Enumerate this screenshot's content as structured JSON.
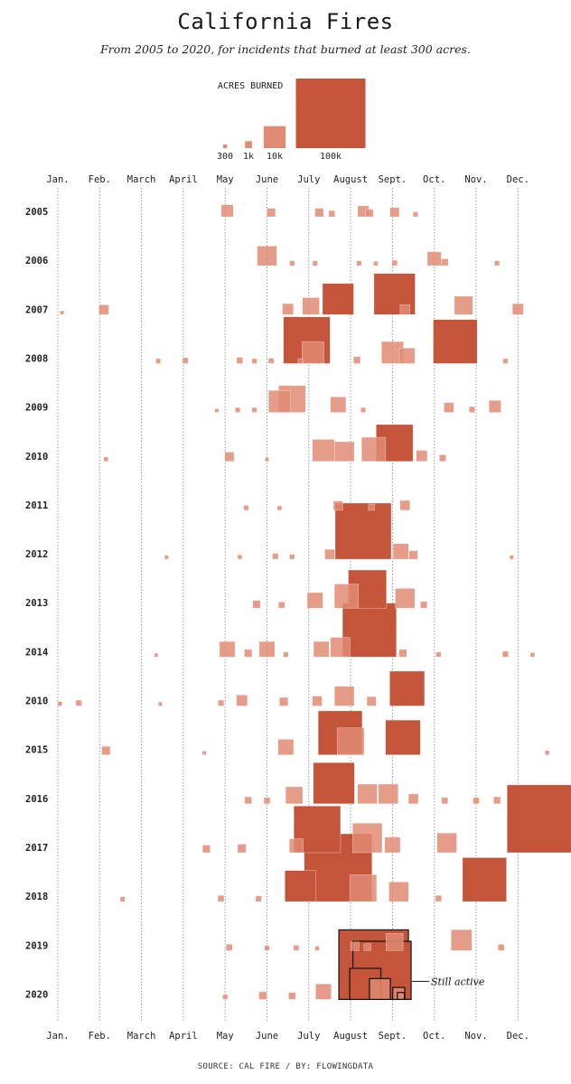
{
  "title": "California Fires",
  "subtitle": "From 2005 to 2020, for incidents that burned at least 300 acres.",
  "source": "SOURCE: CAL FIRE / BY: FLOWINGDATA",
  "colors": {
    "fire": "#c4553a",
    "fire_light": "#e08b74",
    "grid": "#888888",
    "active_outline": "#111111"
  },
  "chart_data": {
    "type": "scatter",
    "marker": "square (area proportional to acres burned)",
    "legend": {
      "title": "ACRES BURNED",
      "entries": [
        {
          "label": "300",
          "acres": 300
        },
        {
          "label": "1k",
          "acres": 1000
        },
        {
          "label": "10k",
          "acres": 10000
        },
        {
          "label": "100k",
          "acres": 100000
        }
      ]
    },
    "months": [
      "Jan.",
      "Feb.",
      "March",
      "April",
      "May",
      "June",
      "July",
      "August",
      "Sept.",
      "Oct.",
      "Nov.",
      "Dec."
    ],
    "rows": [
      "2005",
      "2006",
      "2007",
      "2008",
      "2009",
      "2010",
      "2011",
      "2012",
      "2013",
      "2014",
      "2010",
      "2015",
      "2016",
      "2017",
      "2018",
      "2019",
      "2020"
    ],
    "annotation": {
      "text": "Still active",
      "row": "2020",
      "month": 8.6
    },
    "fires": [
      {
        "row": "2005",
        "month": 5.05,
        "acres": 3000
      },
      {
        "row": "2005",
        "month": 6.1,
        "acres": 1500
      },
      {
        "row": "2005",
        "month": 7.25,
        "acres": 1500
      },
      {
        "row": "2005",
        "month": 7.55,
        "acres": 800
      },
      {
        "row": "2005",
        "month": 8.3,
        "acres": 2500
      },
      {
        "row": "2005",
        "month": 8.45,
        "acres": 1200
      },
      {
        "row": "2005",
        "month": 9.05,
        "acres": 1800
      },
      {
        "row": "2005",
        "month": 9.55,
        "acres": 500
      },
      {
        "row": "2006",
        "month": 6.0,
        "acres": 8000
      },
      {
        "row": "2006",
        "month": 6.6,
        "acres": 500
      },
      {
        "row": "2006",
        "month": 7.15,
        "acres": 500
      },
      {
        "row": "2006",
        "month": 8.2,
        "acres": 500
      },
      {
        "row": "2006",
        "month": 8.6,
        "acres": 400
      },
      {
        "row": "2006",
        "month": 9.05,
        "acres": 600
      },
      {
        "row": "2006",
        "month": 10.0,
        "acres": 4000
      },
      {
        "row": "2006",
        "month": 10.25,
        "acres": 1000
      },
      {
        "row": "2006",
        "month": 11.5,
        "acres": 500
      },
      {
        "row": "2007",
        "month": 1.1,
        "acres": 300
      },
      {
        "row": "2007",
        "month": 2.1,
        "acres": 2000
      },
      {
        "row": "2007",
        "month": 6.5,
        "acres": 2500
      },
      {
        "row": "2007",
        "month": 7.05,
        "acres": 6000
      },
      {
        "row": "2007",
        "month": 7.7,
        "acres": 20000
      },
      {
        "row": "2007",
        "month": 9.05,
        "acres": 35000
      },
      {
        "row": "2007",
        "month": 9.3,
        "acres": 2000
      },
      {
        "row": "2007",
        "month": 10.7,
        "acres": 7000
      },
      {
        "row": "2007",
        "month": 12.0,
        "acres": 2500
      },
      {
        "row": "2008",
        "month": 3.4,
        "acres": 500
      },
      {
        "row": "2008",
        "month": 4.05,
        "acres": 700
      },
      {
        "row": "2008",
        "month": 5.35,
        "acres": 800
      },
      {
        "row": "2008",
        "month": 5.7,
        "acres": 500
      },
      {
        "row": "2008",
        "month": 6.1,
        "acres": 600
      },
      {
        "row": "2008",
        "month": 6.8,
        "acres": 500
      },
      {
        "row": "2008",
        "month": 6.95,
        "acres": 45000
      },
      {
        "row": "2008",
        "month": 7.1,
        "acres": 10000
      },
      {
        "row": "2008",
        "month": 8.15,
        "acres": 1000
      },
      {
        "row": "2008",
        "month": 9.0,
        "acres": 10000
      },
      {
        "row": "2008",
        "month": 9.35,
        "acres": 5000
      },
      {
        "row": "2008",
        "month": 10.5,
        "acres": 40000
      },
      {
        "row": "2008",
        "month": 11.7,
        "acres": 500
      },
      {
        "row": "2009",
        "month": 4.8,
        "acres": 300
      },
      {
        "row": "2009",
        "month": 5.3,
        "acres": 500
      },
      {
        "row": "2009",
        "month": 5.7,
        "acres": 500
      },
      {
        "row": "2009",
        "month": 6.3,
        "acres": 10000
      },
      {
        "row": "2009",
        "month": 6.6,
        "acres": 15000
      },
      {
        "row": "2009",
        "month": 7.7,
        "acres": 5000
      },
      {
        "row": "2009",
        "month": 8.3,
        "acres": 500
      },
      {
        "row": "2009",
        "month": 10.35,
        "acres": 2000
      },
      {
        "row": "2009",
        "month": 10.9,
        "acres": 700
      },
      {
        "row": "2009",
        "month": 11.45,
        "acres": 3000
      },
      {
        "row": "2010",
        "month": 2.15,
        "acres": 400
      },
      {
        "row": "2010",
        "month": 5.1,
        "acres": 1800
      },
      {
        "row": "2010",
        "month": 6.0,
        "acres": 300
      },
      {
        "row": "2010",
        "month": 7.35,
        "acres": 10000
      },
      {
        "row": "2010",
        "month": 7.85,
        "acres": 8000
      },
      {
        "row": "2010",
        "month": 8.55,
        "acres": 12000
      },
      {
        "row": "2010",
        "month": 9.05,
        "acres": 28000
      },
      {
        "row": "2010",
        "month": 9.7,
        "acres": 2500
      },
      {
        "row": "2010",
        "month": 10.2,
        "acres": 900
      },
      {
        "row": "2011",
        "month": 5.5,
        "acres": 500
      },
      {
        "row": "2011",
        "month": 6.3,
        "acres": 400
      },
      {
        "row": "2011",
        "month": 7.7,
        "acres": 1800
      },
      {
        "row": "2011",
        "month": 8.5,
        "acres": 800
      },
      {
        "row": "2011",
        "month": 9.3,
        "acres": 2000
      },
      {
        "row": "2012",
        "month": 3.6,
        "acres": 300
      },
      {
        "row": "2012",
        "month": 5.35,
        "acres": 400
      },
      {
        "row": "2012",
        "month": 6.2,
        "acres": 700
      },
      {
        "row": "2012",
        "month": 6.6,
        "acres": 500
      },
      {
        "row": "2012",
        "month": 7.5,
        "acres": 2000
      },
      {
        "row": "2012",
        "month": 8.3,
        "acres": 65000
      },
      {
        "row": "2012",
        "month": 9.2,
        "acres": 5000
      },
      {
        "row": "2012",
        "month": 9.5,
        "acres": 1500
      },
      {
        "row": "2012",
        "month": 11.85,
        "acres": 300
      },
      {
        "row": "2013",
        "month": 5.75,
        "acres": 1200
      },
      {
        "row": "2013",
        "month": 6.35,
        "acres": 800
      },
      {
        "row": "2013",
        "month": 7.15,
        "acres": 5000
      },
      {
        "row": "2013",
        "month": 7.9,
        "acres": 12000
      },
      {
        "row": "2013",
        "month": 8.4,
        "acres": 30000
      },
      {
        "row": "2013",
        "month": 9.3,
        "acres": 8000
      },
      {
        "row": "2013",
        "month": 9.75,
        "acres": 900
      },
      {
        "row": "2014",
        "month": 3.35,
        "acres": 300
      },
      {
        "row": "2014",
        "month": 5.05,
        "acres": 5000
      },
      {
        "row": "2014",
        "month": 5.55,
        "acres": 1200
      },
      {
        "row": "2014",
        "month": 6.0,
        "acres": 5000
      },
      {
        "row": "2014",
        "month": 6.45,
        "acres": 500
      },
      {
        "row": "2014",
        "month": 7.3,
        "acres": 5000
      },
      {
        "row": "2014",
        "month": 7.75,
        "acres": 8000
      },
      {
        "row": "2014",
        "month": 8.45,
        "acres": 60000
      },
      {
        "row": "2014",
        "month": 9.25,
        "acres": 1200
      },
      {
        "row": "2014",
        "month": 10.1,
        "acres": 500
      },
      {
        "row": "2014",
        "month": 11.7,
        "acres": 700
      },
      {
        "row": "2014",
        "month": 12.35,
        "acres": 400
      },
      {
        "row": "2010b",
        "label": "2010",
        "month": 1.05,
        "acres": 400
      },
      {
        "row": "2010b",
        "label": "2010",
        "month": 1.5,
        "acres": 700
      },
      {
        "row": "2010b",
        "month": 3.45,
        "acres": 300
      },
      {
        "row": "2010b",
        "month": 4.9,
        "acres": 700
      },
      {
        "row": "2010b",
        "month": 5.4,
        "acres": 2500
      },
      {
        "row": "2010b",
        "month": 6.4,
        "acres": 1500
      },
      {
        "row": "2010b",
        "month": 7.2,
        "acres": 2000
      },
      {
        "row": "2010b",
        "month": 7.85,
        "acres": 8000
      },
      {
        "row": "2010b",
        "month": 8.5,
        "acres": 1800
      },
      {
        "row": "2010b",
        "month": 9.35,
        "acres": 25000
      },
      {
        "row": "2015",
        "month": 2.15,
        "acres": 1500
      },
      {
        "row": "2015",
        "month": 4.5,
        "acres": 300
      },
      {
        "row": "2015",
        "month": 6.45,
        "acres": 5000
      },
      {
        "row": "2015",
        "month": 7.75,
        "acres": 40000
      },
      {
        "row": "2015",
        "month": 8.0,
        "acres": 15000
      },
      {
        "row": "2015",
        "month": 9.25,
        "acres": 25000
      },
      {
        "row": "2015",
        "month": 12.7,
        "acres": 400
      },
      {
        "row": "2016",
        "month": 5.55,
        "acres": 1000
      },
      {
        "row": "2016",
        "month": 6.0,
        "acres": 800
      },
      {
        "row": "2016",
        "month": 6.65,
        "acres": 6000
      },
      {
        "row": "2016",
        "month": 7.6,
        "acres": 35000
      },
      {
        "row": "2016",
        "month": 8.4,
        "acres": 8000
      },
      {
        "row": "2016",
        "month": 8.9,
        "acres": 8000
      },
      {
        "row": "2016",
        "month": 9.5,
        "acres": 2000
      },
      {
        "row": "2016",
        "month": 10.25,
        "acres": 800
      },
      {
        "row": "2016",
        "month": 11.0,
        "acres": 800
      },
      {
        "row": "2016",
        "month": 11.5,
        "acres": 1000
      },
      {
        "row": "2017",
        "month": 4.55,
        "acres": 1200
      },
      {
        "row": "2017",
        "month": 5.4,
        "acres": 1500
      },
      {
        "row": "2017",
        "month": 6.7,
        "acres": 4000
      },
      {
        "row": "2017",
        "month": 7.2,
        "acres": 45000
      },
      {
        "row": "2017",
        "month": 8.4,
        "acres": 18000
      },
      {
        "row": "2017",
        "month": 9.0,
        "acres": 5000
      },
      {
        "row": "2017",
        "month": 10.3,
        "acres": 8000
      },
      {
        "row": "2017",
        "month": 12.55,
        "acres": 95000
      },
      {
        "row": "2018",
        "month": 2.55,
        "acres": 500
      },
      {
        "row": "2018",
        "month": 4.9,
        "acres": 800
      },
      {
        "row": "2018",
        "month": 5.8,
        "acres": 700
      },
      {
        "row": "2018",
        "month": 6.8,
        "acres": 20000
      },
      {
        "row": "2018",
        "month": 7.7,
        "acres": 95000
      },
      {
        "row": "2018",
        "month": 8.3,
        "acres": 15000
      },
      {
        "row": "2018",
        "month": 9.15,
        "acres": 8000
      },
      {
        "row": "2018",
        "month": 10.1,
        "acres": 800
      },
      {
        "row": "2018",
        "month": 11.2,
        "acres": 40000
      },
      {
        "row": "2019",
        "month": 5.1,
        "acres": 800
      },
      {
        "row": "2019",
        "month": 6.0,
        "acres": 500
      },
      {
        "row": "2019",
        "month": 6.7,
        "acres": 600
      },
      {
        "row": "2019",
        "month": 7.2,
        "acres": 400
      },
      {
        "row": "2019",
        "month": 8.1,
        "acres": 1500
      },
      {
        "row": "2019",
        "month": 8.4,
        "acres": 1000
      },
      {
        "row": "2019",
        "month": 9.05,
        "acres": 6000
      },
      {
        "row": "2019",
        "month": 10.65,
        "acres": 9000
      },
      {
        "row": "2019",
        "month": 11.6,
        "acres": 800
      },
      {
        "row": "2020",
        "month": 5.0,
        "acres": 500
      },
      {
        "row": "2020",
        "month": 5.9,
        "acres": 1200
      },
      {
        "row": "2020",
        "month": 6.6,
        "acres": 1000
      },
      {
        "row": "2020",
        "month": 7.35,
        "acres": 5000
      },
      {
        "row": "2020",
        "month": 8.55,
        "acres": 100000,
        "active": true
      },
      {
        "row": "2020",
        "month": 8.75,
        "acres": 70000,
        "active": true
      },
      {
        "row": "2020",
        "month": 8.35,
        "acres": 20000,
        "active": true
      },
      {
        "row": "2020",
        "month": 8.7,
        "acres": 9000,
        "active": true
      },
      {
        "row": "2020",
        "month": 9.15,
        "acres": 3000,
        "active": true
      },
      {
        "row": "2020",
        "month": 9.2,
        "acres": 1000,
        "active": true
      }
    ]
  }
}
